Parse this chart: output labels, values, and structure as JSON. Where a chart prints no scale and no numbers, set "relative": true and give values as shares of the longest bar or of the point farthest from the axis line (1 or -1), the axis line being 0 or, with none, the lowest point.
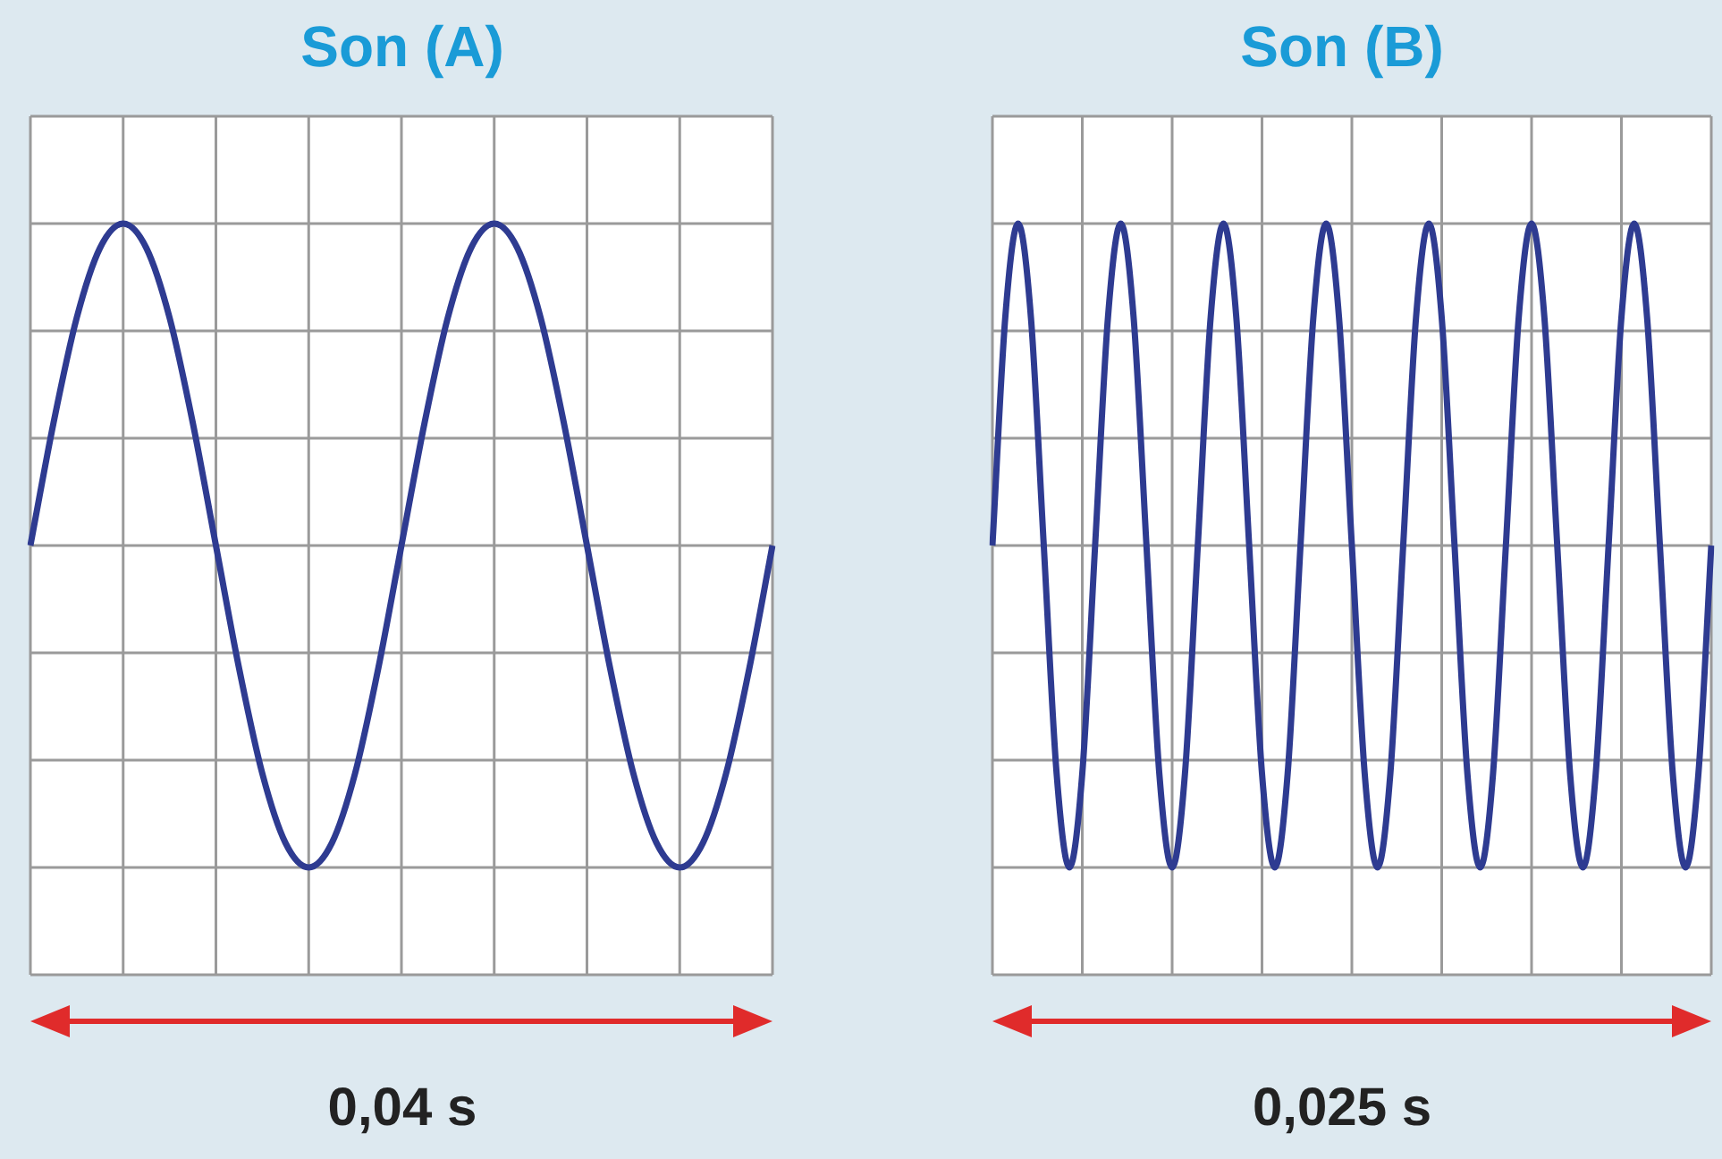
{
  "chart_data": [
    {
      "type": "line",
      "title": "Son (A)",
      "relative": true,
      "grid": true,
      "color": "#2e3b91",
      "annotations": [
        "0,04 s"
      ],
      "categories": [
        null,
        null,
        null,
        null,
        null,
        null,
        null,
        null,
        null,
        null,
        null,
        null,
        null,
        null,
        null,
        null,
        null,
        null,
        null,
        null,
        null,
        null,
        null,
        null,
        null,
        null,
        null,
        null,
        null,
        null,
        null,
        null,
        null
      ],
      "values": [
        0.5,
        0.691,
        0.854,
        0.962,
        1,
        0.962,
        0.854,
        0.691,
        0.5,
        0.309,
        0.146,
        0.038,
        0,
        0.038,
        0.146,
        0.309,
        0.5,
        0.691,
        0.854,
        0.962,
        1,
        0.962,
        0.854,
        0.691,
        0.5,
        0.309,
        0.146,
        0.038,
        0,
        0.038,
        0.146,
        0.309,
        0.5
      ]
    },
    {
      "type": "line",
      "title": "Son (B)",
      "relative": true,
      "grid": true,
      "color": "#2e3b91",
      "annotations": [
        "0,025 s"
      ],
      "categories": [
        null,
        null,
        null,
        null,
        null,
        null,
        null,
        null,
        null,
        null,
        null,
        null,
        null,
        null,
        null,
        null,
        null,
        null,
        null,
        null,
        null,
        null,
        null,
        null,
        null,
        null,
        null,
        null,
        null,
        null,
        null,
        null,
        null,
        null,
        null,
        null,
        null,
        null,
        null,
        null,
        null,
        null,
        null,
        null,
        null,
        null,
        null,
        null,
        null,
        null,
        null,
        null,
        null,
        null,
        null,
        null,
        null
      ],
      "values": [
        0.5,
        0.854,
        1,
        0.854,
        0.5,
        0.146,
        0,
        0.146,
        0.5,
        0.854,
        1,
        0.854,
        0.5,
        0.146,
        0,
        0.146,
        0.5,
        0.854,
        1,
        0.854,
        0.5,
        0.146,
        0,
        0.146,
        0.5,
        0.854,
        1,
        0.854,
        0.5,
        0.146,
        0,
        0.146,
        0.5,
        0.854,
        1,
        0.854,
        0.5,
        0.146,
        0,
        0.146,
        0.5,
        0.854,
        1,
        0.854,
        0.5,
        0.146,
        0,
        0.146,
        0.5,
        0.854,
        1,
        0.854,
        0.5,
        0.146,
        0,
        0.146,
        0.5
      ]
    }
  ]
}
